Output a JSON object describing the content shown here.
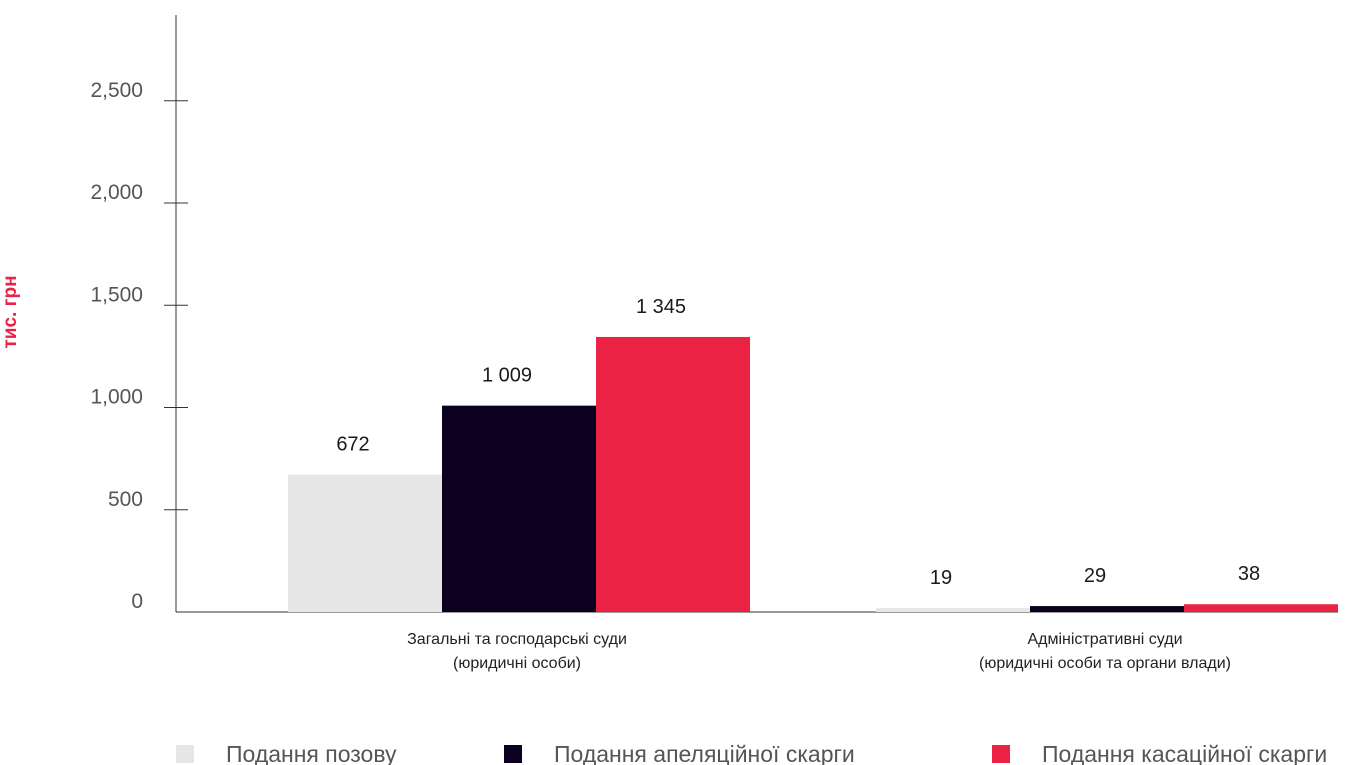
{
  "chart_data": {
    "type": "bar",
    "ylabel": "тис. грн",
    "ylim": [
      0,
      2800
    ],
    "yticks": [
      {
        "value": 0,
        "label": "0"
      },
      {
        "value": 500,
        "label": "500"
      },
      {
        "value": 1000,
        "label": "1,000"
      },
      {
        "value": 1500,
        "label": "1,500"
      },
      {
        "value": 2000,
        "label": "2,000"
      },
      {
        "value": 2500,
        "label": "2,500"
      }
    ],
    "categories": [
      [
        "Загальні та господарські суди",
        "(юридичні особи)"
      ],
      [
        "Адміністративні суди",
        "(юридичні особи та органи влади)"
      ]
    ],
    "series": [
      {
        "name": "Подання позову",
        "color": "#e6e6e6",
        "values": [
          672,
          19
        ],
        "labels": [
          "672",
          "19"
        ]
      },
      {
        "name": "Подання апеляційної скарги",
        "color": "#0b0020",
        "values": [
          1009,
          29
        ],
        "labels": [
          "1 009",
          "29"
        ]
      },
      {
        "name": "Подання касаційної скарги",
        "color": "#ec2244",
        "values": [
          1345,
          38
        ],
        "labels": [
          "1 345",
          "38"
        ]
      }
    ],
    "legend_position": "bottom",
    "grid": false,
    "colors": {
      "accent": "#ec2244",
      "axis": "#333333",
      "tick_text": "#555555"
    }
  }
}
